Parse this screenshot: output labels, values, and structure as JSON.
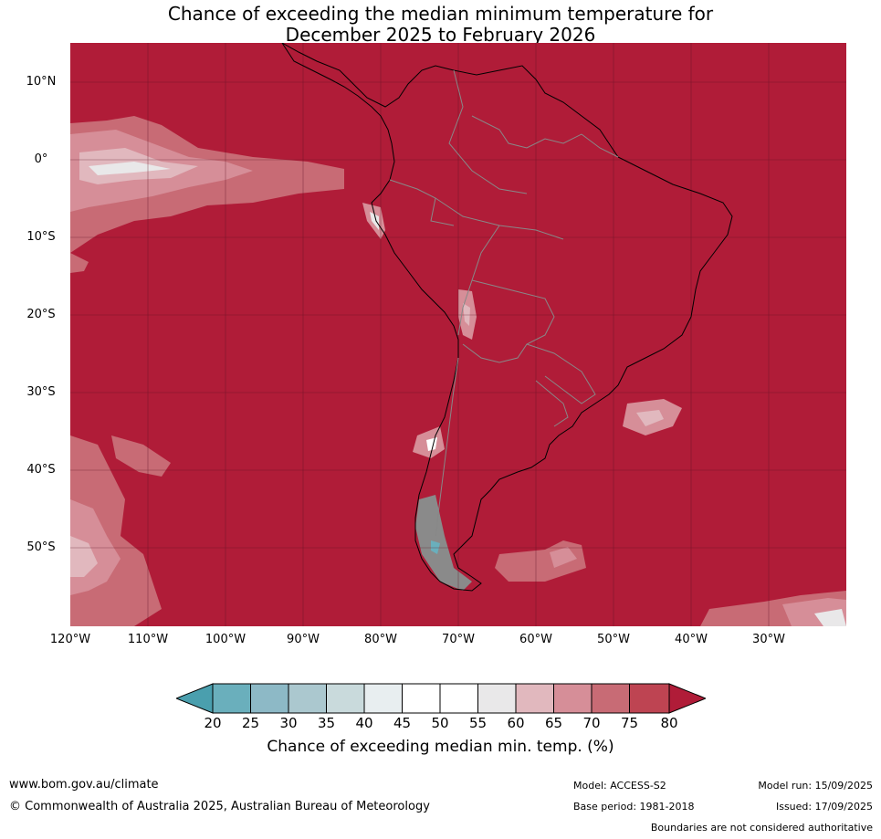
{
  "title": {
    "line1": "Chance of exceeding the median minimum temperature for",
    "line2": "December 2025 to February 2026"
  },
  "map": {
    "lat_labels": [
      "10°N",
      "0°",
      "10°S",
      "20°S",
      "30°S",
      "40°S",
      "50°S"
    ],
    "lon_labels": [
      "120°W",
      "110°W",
      "100°W",
      "90°W",
      "80°W",
      "70°W",
      "60°W",
      "50°W",
      "40°W",
      "30°W"
    ],
    "dominant_color": "#b01c38"
  },
  "colorbar": {
    "ticks": [
      "20",
      "25",
      "30",
      "35",
      "40",
      "45",
      "50",
      "55",
      "60",
      "65",
      "70",
      "75",
      "80"
    ],
    "colors": [
      "#4a9fae",
      "#6aafbc",
      "#8db9c6",
      "#abc8cf",
      "#c9dadc",
      "#e8eef0",
      "#ffffff",
      "#ffffff",
      "#e9e8e9",
      "#e1b8be",
      "#d68e98",
      "#c86b75",
      "#be4452",
      "#b01c38"
    ],
    "label": "Chance of exceeding median min. temp. (%)"
  },
  "footer": {
    "url": "www.bom.gov.au/climate",
    "copyright": "© Commonwealth of Australia 2025, Australian Bureau of Meteorology",
    "model": "Model: ACCESS-S2",
    "base_period": "Base period: 1981-2018",
    "model_run": "Model run: 15/09/2025",
    "issued": "Issued: 17/09/2025",
    "disclaimer": "Boundaries are not considered authoritative"
  }
}
